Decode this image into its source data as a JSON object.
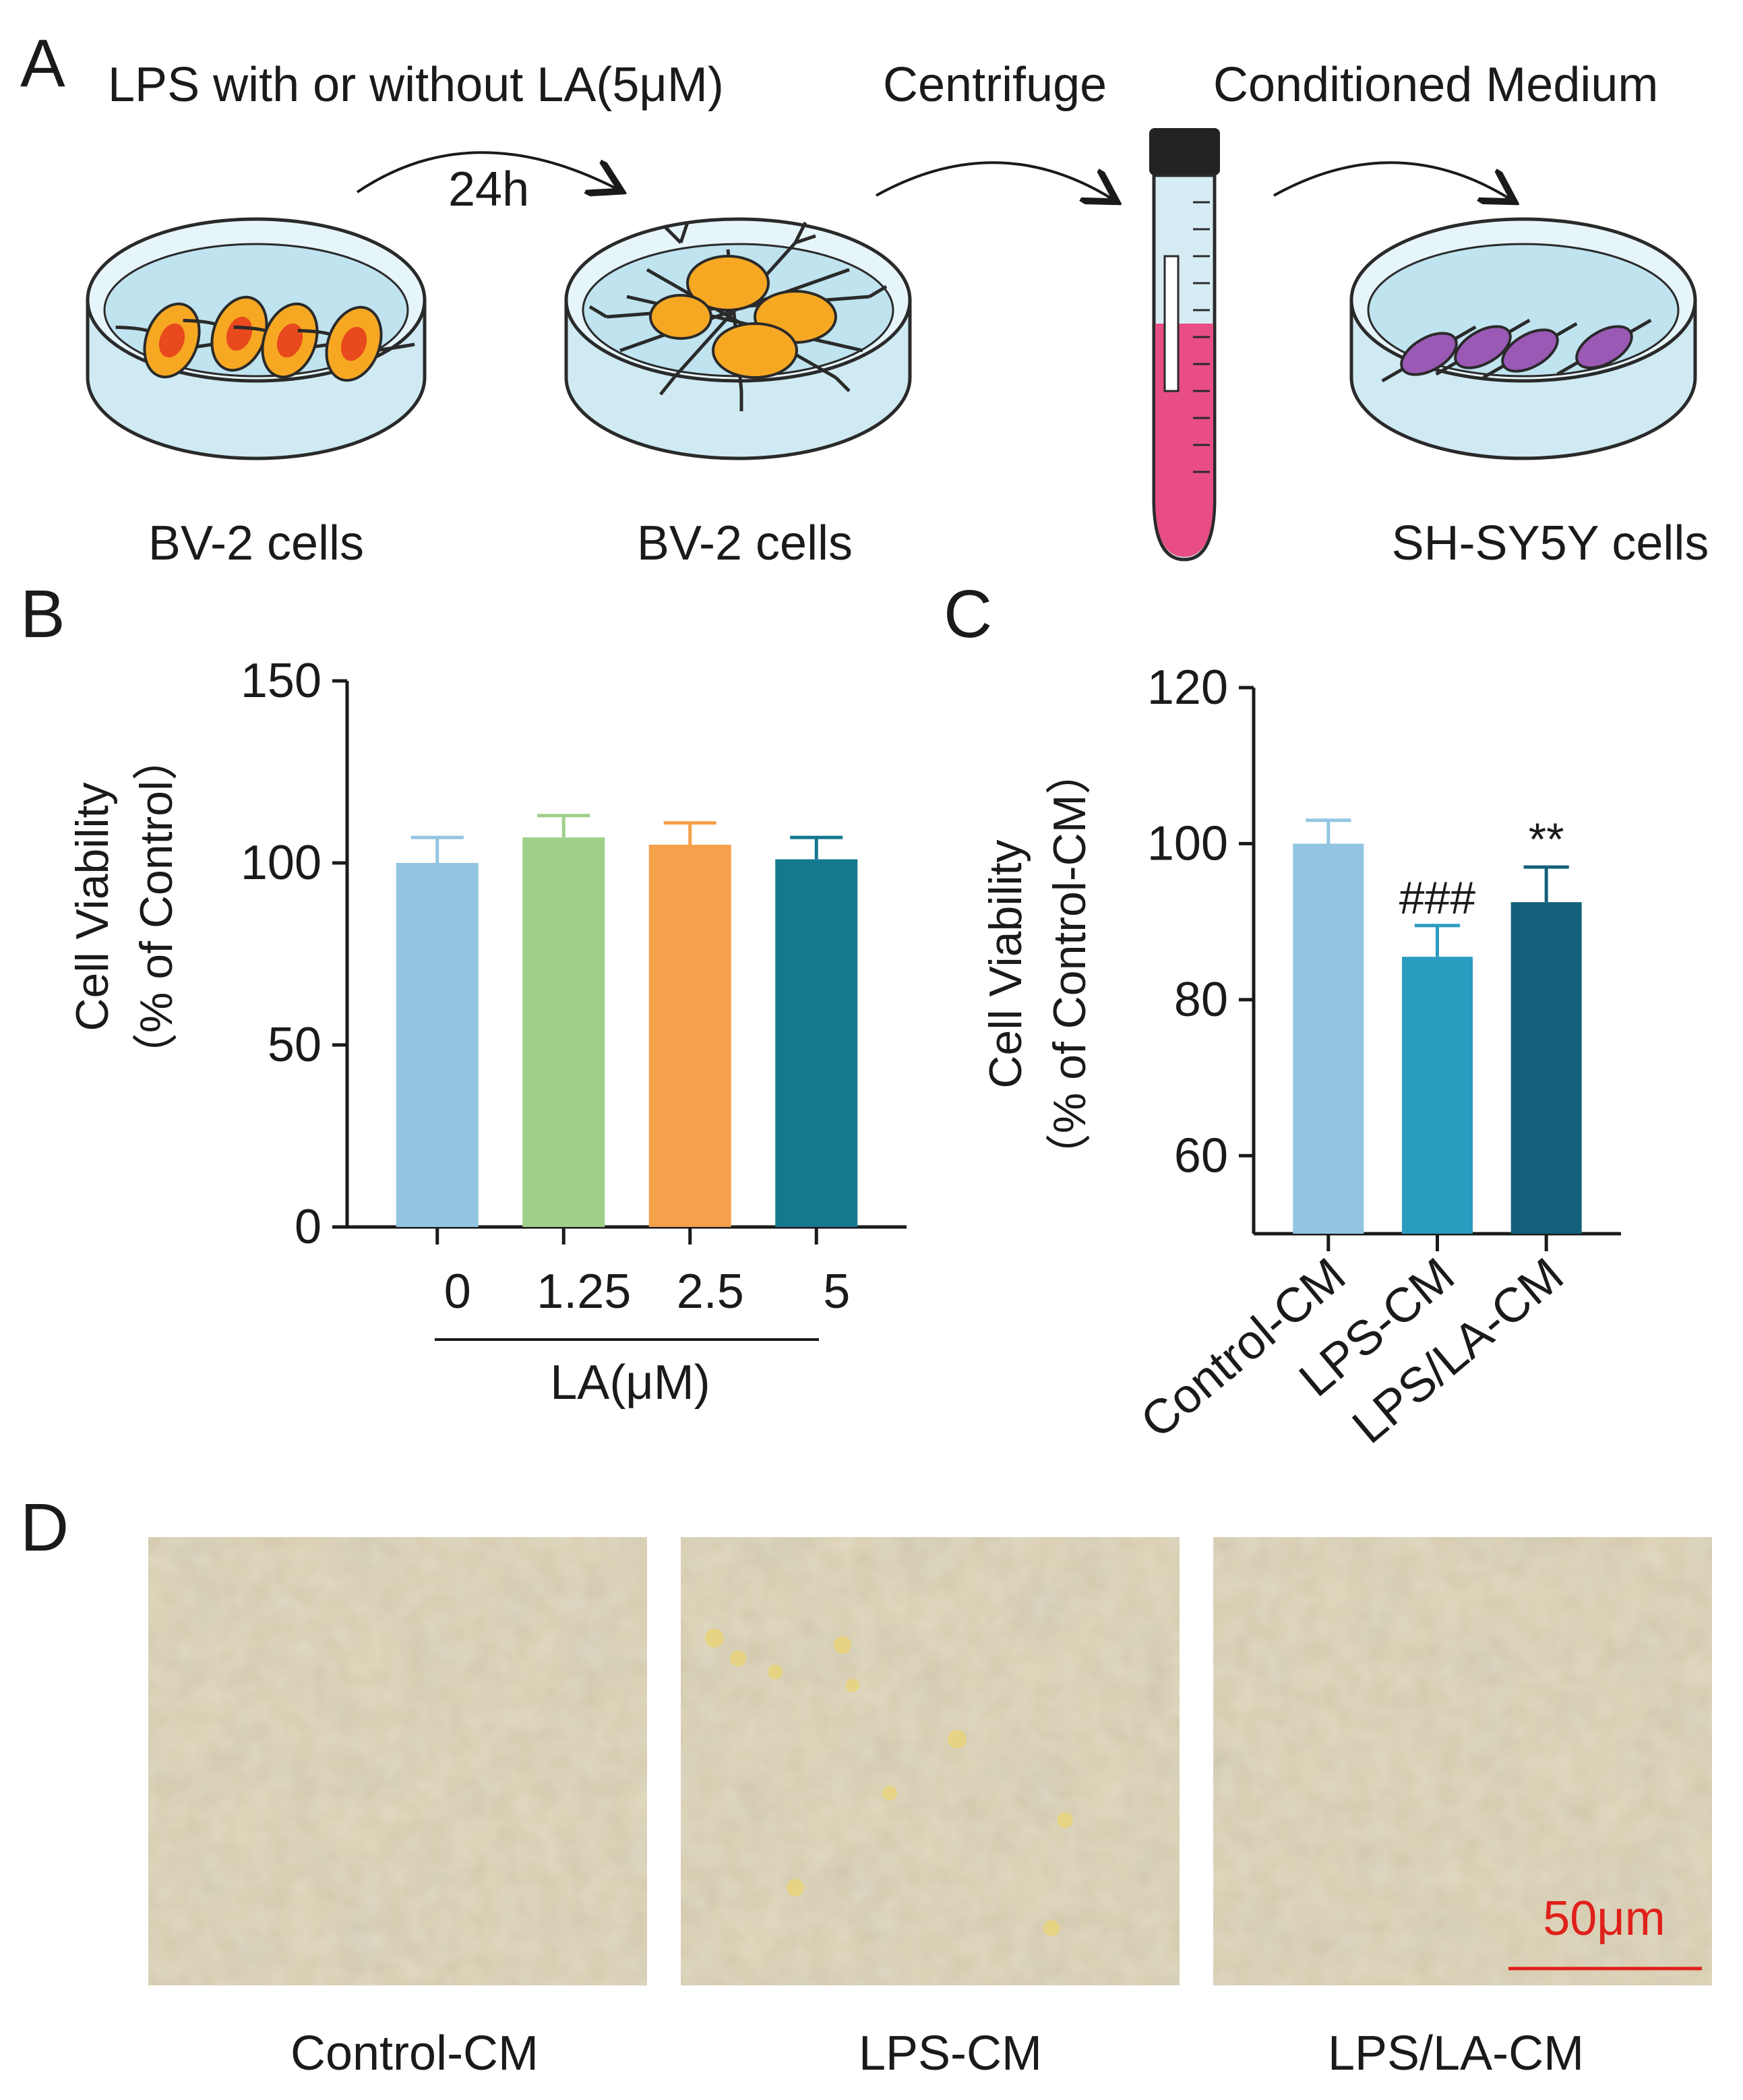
{
  "panels": {
    "a": {
      "letter": "A"
    },
    "b": {
      "letter": "B"
    },
    "c": {
      "letter": "C"
    },
    "d": {
      "letter": "D"
    }
  },
  "schematic": {
    "step1_label": "LPS with or without LA(5μM)",
    "step1_time": "24h",
    "step2_label": "Centrifuge",
    "step3_label": "Conditioned Medium",
    "dish1_label": "BV-2 cells",
    "dish2_label": "BV-2 cells",
    "dish3_label": "SH-SY5Y cells",
    "colors": {
      "dish": "#cfeaf3",
      "microglia": "#f7a823",
      "nucleus": "#e8491d",
      "neuron": "#9b59b6",
      "medium": "#e94d86",
      "tube_cap": "#222222"
    }
  },
  "chart_data": [
    {
      "id": "B",
      "type": "bar",
      "title": "",
      "categories": [
        "0",
        "1.25",
        "2.5",
        "5"
      ],
      "values": [
        100,
        107,
        105,
        101
      ],
      "errors": [
        7,
        6,
        6,
        6
      ],
      "colors": [
        "#93c5e2",
        "#9fd08a",
        "#f5a04a",
        "#15788e"
      ],
      "ylabel_line1": "Cell Viability",
      "ylabel_line2": "（% of  Control）",
      "xlabel": "LA(μM)",
      "ylim": [
        0,
        150
      ],
      "yticks": [
        "0",
        "50",
        "100",
        "150"
      ],
      "annotations": []
    },
    {
      "id": "C",
      "type": "bar",
      "title": "",
      "categories": [
        "Control-CM",
        "LPS-CM",
        "LPS/LA-CM"
      ],
      "values": [
        100,
        85.5,
        92.5
      ],
      "errors": [
        3,
        4,
        4.5
      ],
      "colors": [
        "#93c5e2",
        "#2a9cc0",
        "#14607a"
      ],
      "ylabel_line1": "Cell Viability",
      "ylabel_line2": "（% of  Control-CM）",
      "xlabel": "",
      "ylim": [
        50,
        120
      ],
      "yticks": [
        "60",
        "80",
        "100",
        "120"
      ],
      "annotations": [
        "",
        "###",
        "**"
      ]
    }
  ],
  "micrographs": {
    "labels": [
      "Control-CM",
      "LPS-CM",
      "LPS/LA-CM"
    ],
    "scale_bar": "50μm",
    "scale_bar_color": "#e0201a",
    "base_color": "#d8ccac"
  }
}
